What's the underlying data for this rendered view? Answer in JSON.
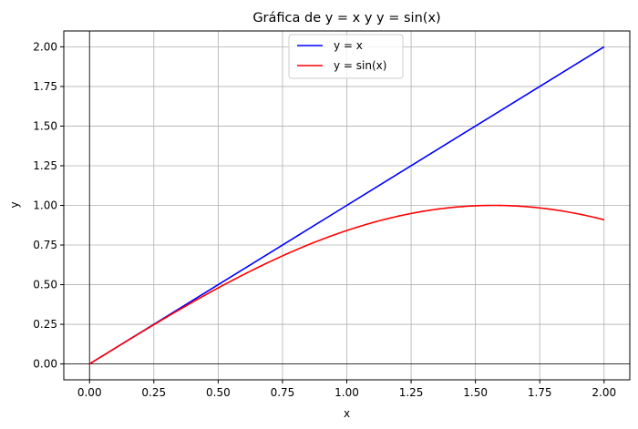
{
  "chart_data": {
    "type": "line",
    "title": "Gráfica de y = x y y = sin(x)",
    "xlabel": "x",
    "ylabel": "y",
    "xlim": [
      -0.1,
      2.1
    ],
    "ylim": [
      -0.1,
      2.1
    ],
    "xticks": [
      0.0,
      0.25,
      0.5,
      0.75,
      1.0,
      1.25,
      1.5,
      1.75,
      2.0
    ],
    "xtick_labels": [
      "0.00",
      "0.25",
      "0.50",
      "0.75",
      "1.00",
      "1.25",
      "1.50",
      "1.75",
      "2.00"
    ],
    "yticks": [
      0.0,
      0.25,
      0.5,
      0.75,
      1.0,
      1.25,
      1.5,
      1.75,
      2.0
    ],
    "ytick_labels": [
      "0.00",
      "0.25",
      "0.50",
      "0.75",
      "1.00",
      "1.25",
      "1.50",
      "1.75",
      "2.00"
    ],
    "grid": true,
    "legend_position": "upper center",
    "reference_lines": {
      "x0": true,
      "y0": true,
      "color": "#000000"
    },
    "series": [
      {
        "name": "y = x",
        "color": "#0000ff",
        "x": [
          0.0,
          0.25,
          0.5,
          0.75,
          1.0,
          1.25,
          1.5,
          1.75,
          2.0
        ],
        "y": [
          0.0,
          0.25,
          0.5,
          0.75,
          1.0,
          1.25,
          1.5,
          1.75,
          2.0
        ]
      },
      {
        "name": "y = sin(x)",
        "color": "#ff0000",
        "x": [
          0.0,
          0.1,
          0.2,
          0.3,
          0.4,
          0.5,
          0.6,
          0.7,
          0.8,
          0.9,
          1.0,
          1.1,
          1.2,
          1.3,
          1.4,
          1.5,
          1.6,
          1.7,
          1.8,
          1.9,
          2.0
        ],
        "y": [
          0.0,
          0.0998,
          0.1987,
          0.2955,
          0.3894,
          0.4794,
          0.5646,
          0.6442,
          0.7174,
          0.7833,
          0.8415,
          0.8912,
          0.932,
          0.9636,
          0.9854,
          0.9975,
          0.9996,
          0.9917,
          0.9738,
          0.9463,
          0.9093
        ]
      }
    ]
  }
}
